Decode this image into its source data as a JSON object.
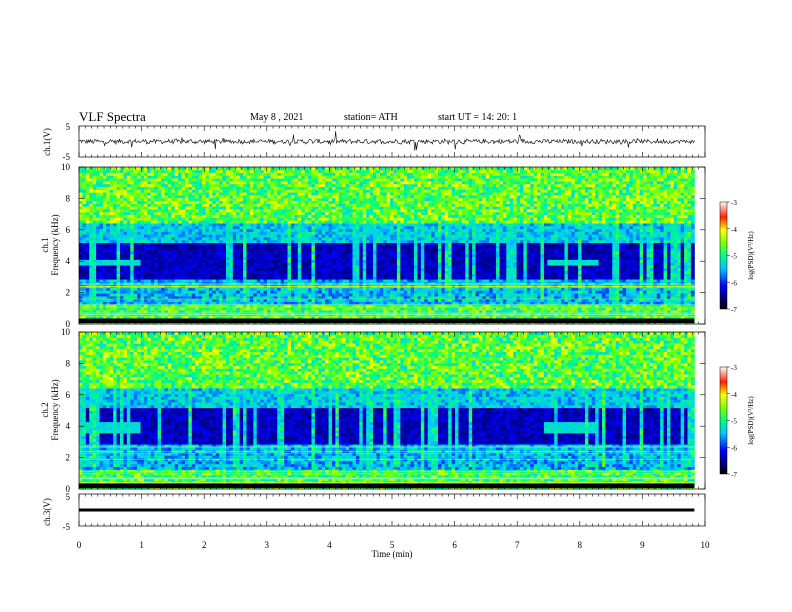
{
  "header": {
    "title": "VLF  Spectra",
    "date": "May 8  , 2021",
    "station": "station= ATH",
    "start": "start  UT  =   14: 20: 1"
  },
  "chart_data": [
    {
      "type": "line",
      "id": "ch1-waveform",
      "ylabel": "ch.1(V)",
      "ylim": [
        -5,
        5
      ],
      "yticks": [
        "5",
        "-5"
      ],
      "xlim": [
        0,
        10
      ],
      "trace_end_min": 9.83
    },
    {
      "type": "heatmap",
      "id": "ch1-spectrogram",
      "ylabel": [
        "ch.1",
        "Frequency  (kHz)"
      ],
      "ylim": [
        0,
        10
      ],
      "yticks": [
        "0",
        "2",
        "4",
        "6",
        "8",
        "10"
      ],
      "xlim": [
        0,
        10
      ],
      "data_end_min": 9.83,
      "colorbar": {
        "label": "log(PSD)(V²/Hz)",
        "range": [
          -7,
          -3
        ],
        "ticks": [
          "-3",
          "-4",
          "-5",
          "-6",
          "-7"
        ]
      },
      "features": {
        "quiet_band_khz": [
          2.8,
          5.2
        ],
        "emission_band_khz": [
          3.7,
          4.1
        ],
        "emission_intervals_min": [
          [
            0,
            0.97
          ],
          [
            7.5,
            8.3
          ]
        ]
      }
    },
    {
      "type": "heatmap",
      "id": "ch2-spectrogram",
      "ylabel": [
        "ch.2",
        "Frequency  (kHz)"
      ],
      "ylim": [
        0,
        10
      ],
      "yticks": [
        "0",
        "2",
        "4",
        "6",
        "8",
        "10"
      ],
      "xlim": [
        0,
        10
      ],
      "data_end_min": 9.83,
      "colorbar": {
        "label": "log(PSD)(V²/Hz)",
        "range": [
          -7,
          -3
        ],
        "ticks": [
          "-3",
          "-4",
          "-5",
          "-6",
          "-7"
        ]
      },
      "features": {
        "quiet_band_khz": [
          2.8,
          5.2
        ],
        "emission_band_khz": [
          3.6,
          4.3
        ],
        "emission_intervals_min": [
          [
            0,
            1.0
          ],
          [
            7.4,
            8.3
          ]
        ]
      }
    },
    {
      "type": "line",
      "id": "ch3-waveform",
      "ylabel": "ch.3(V)",
      "ylim": [
        -5,
        5
      ],
      "yticks": [
        "5",
        "-5"
      ],
      "xlim": [
        0,
        10
      ],
      "level_v": 0,
      "trace_end_min": 9.83,
      "xlabel": "Time  (min)",
      "xticks": [
        "0",
        "1",
        "2",
        "3",
        "4",
        "5",
        "6",
        "7",
        "8",
        "9",
        "10"
      ]
    }
  ]
}
